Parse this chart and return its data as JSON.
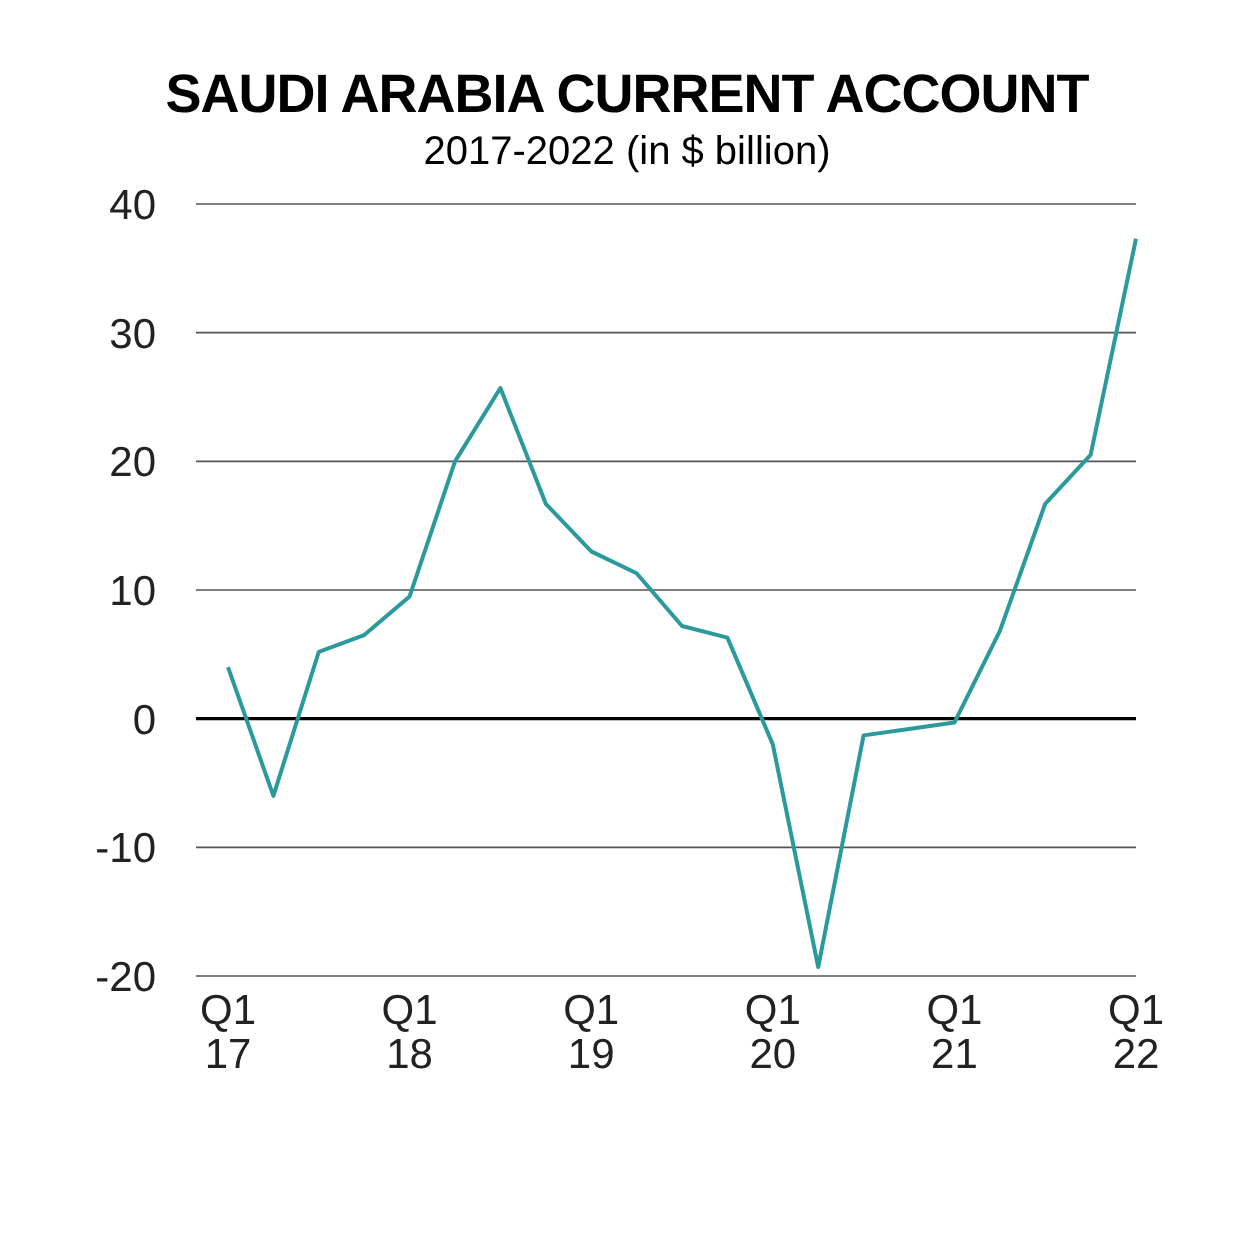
{
  "chart_data": {
    "type": "line",
    "title": "SAUDI ARABIA CURRENT ACCOUNT",
    "subtitle": "2017-2022 (in $ billion)",
    "categories": [
      "Q1\n17",
      null,
      null,
      null,
      "Q1\n18",
      null,
      null,
      null,
      "Q1\n19",
      null,
      null,
      null,
      "Q1\n20",
      null,
      null,
      null,
      "Q1\n21",
      null,
      null,
      null,
      "Q1\n22"
    ],
    "series": [
      {
        "color": "#2a9a9c",
        "values": [
          4,
          -6,
          5.2,
          6.5,
          9.5,
          20,
          25.7,
          16.7,
          13,
          11.3,
          7.2,
          6.3,
          -2,
          -19.3,
          -1.3,
          -0.8,
          -0.3,
          6.8,
          16.7,
          20.5,
          37.3
        ]
      }
    ],
    "ylim": [
      -20,
      40
    ],
    "yticks": [
      -20,
      -10,
      0,
      10,
      20,
      30,
      40
    ],
    "grid": "y",
    "legend": false,
    "marker": "none",
    "line_style": "solid",
    "ref_lines": [
      {
        "axis": "y",
        "value": 0,
        "color": "#000000"
      }
    ]
  }
}
